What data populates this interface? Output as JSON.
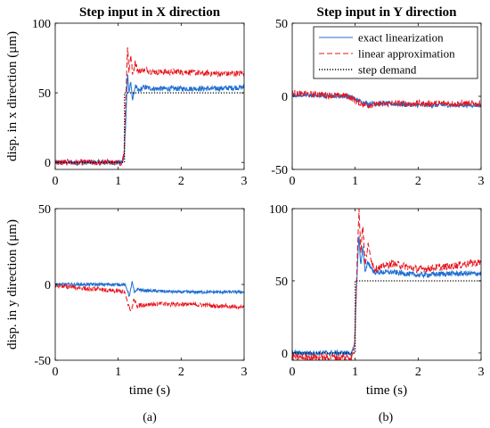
{
  "figure": {
    "captions": [
      "(a)",
      "(b)"
    ]
  },
  "legend": {
    "entries": [
      {
        "label": "exact linearization",
        "color": "#1f6fd1",
        "style": "solid"
      },
      {
        "label": "linear approximation",
        "color": "#e8131b",
        "style": "dashed"
      },
      {
        "label": "step demand",
        "color": "#000000",
        "style": "dotted"
      }
    ],
    "placement": "top-right of top-right panel"
  },
  "chart_data": [
    {
      "type": "line",
      "panel": "top-left",
      "title": "Step input in X direction",
      "xlabel": "",
      "ylabel": "disp. in x direction (μm)",
      "xlim": [
        0,
        3
      ],
      "ylim": [
        -5,
        100
      ],
      "xticks": [
        "0",
        "1",
        "2",
        "3"
      ],
      "yticks": [
        "0",
        "50",
        "100"
      ],
      "series": [
        {
          "name": "exact linearization",
          "color": "#1f6fd1",
          "style": "solid",
          "noise": 1.8,
          "x": [
            0,
            1.05,
            1.09,
            1.12,
            1.15,
            1.17,
            1.2,
            1.23,
            1.27,
            1.32,
            1.4,
            1.55,
            2.0,
            2.5,
            3.0
          ],
          "y": [
            0,
            0,
            2,
            30,
            65,
            50,
            57,
            45,
            55,
            51,
            54,
            53,
            53,
            53,
            54
          ]
        },
        {
          "name": "linear approximation",
          "color": "#e8131b",
          "style": "dashed",
          "noise": 2.2,
          "x": [
            0,
            1.05,
            1.09,
            1.12,
            1.15,
            1.17,
            1.2,
            1.23,
            1.27,
            1.32,
            1.4,
            1.55,
            2.0,
            2.5,
            3.0
          ],
          "y": [
            0,
            0,
            5,
            45,
            85,
            65,
            78,
            62,
            72,
            65,
            67,
            65,
            65,
            64,
            64
          ]
        },
        {
          "name": "step demand",
          "color": "#000000",
          "style": "dotted",
          "noise": 0,
          "x": [
            0,
            1.1,
            1.1,
            3.0
          ],
          "y": [
            0,
            0,
            50,
            50
          ]
        }
      ]
    },
    {
      "type": "line",
      "panel": "top-right",
      "title": "Step input in Y direction",
      "xlabel": "",
      "ylabel": "",
      "xlim": [
        0,
        3
      ],
      "ylim": [
        -50,
        50
      ],
      "xticks": [
        "0",
        "1",
        "2",
        "3"
      ],
      "yticks": [
        "-50",
        "0",
        "50"
      ],
      "series": [
        {
          "name": "exact linearization",
          "color": "#1f6fd1",
          "style": "solid",
          "noise": 1.6,
          "x": [
            0,
            0.9,
            1.0,
            1.1,
            1.2,
            1.5,
            2.0,
            2.5,
            3.0
          ],
          "y": [
            1,
            0,
            -2,
            -4,
            -5,
            -5,
            -6,
            -6,
            -6
          ]
        },
        {
          "name": "linear approximation",
          "color": "#e8131b",
          "style": "dashed",
          "noise": 2.2,
          "x": [
            0,
            0.5,
            0.9,
            1.0,
            1.1,
            1.2,
            1.5,
            2.0,
            2.5,
            3.0
          ],
          "y": [
            2,
            1,
            0,
            -3,
            -5,
            -6,
            -5,
            -5,
            -5,
            -5
          ]
        }
      ]
    },
    {
      "type": "line",
      "panel": "bottom-left",
      "title": "",
      "xlabel": "time (s)",
      "ylabel": "disp. in y direction (μm)",
      "xlim": [
        0,
        3
      ],
      "ylim": [
        -50,
        50
      ],
      "xticks": [
        "0",
        "1",
        "2",
        "3"
      ],
      "yticks": [
        "-50",
        "0",
        "50"
      ],
      "series": [
        {
          "name": "exact linearization",
          "color": "#1f6fd1",
          "style": "solid",
          "noise": 1.0,
          "x": [
            0,
            1.1,
            1.14,
            1.18,
            1.22,
            1.26,
            1.3,
            1.4,
            2.0,
            2.5,
            3.0
          ],
          "y": [
            0,
            0,
            -3,
            -8,
            2,
            -6,
            -3,
            -4,
            -5,
            -5,
            -5
          ]
        },
        {
          "name": "linear approximation",
          "color": "#e8131b",
          "style": "dashed",
          "noise": 1.5,
          "x": [
            0,
            0.6,
            1.1,
            1.15,
            1.2,
            1.25,
            1.3,
            1.5,
            2.0,
            2.5,
            3.0
          ],
          "y": [
            -1,
            -3,
            -5,
            -12,
            -18,
            -10,
            -14,
            -13,
            -13,
            -14,
            -15
          ]
        }
      ]
    },
    {
      "type": "line",
      "panel": "bottom-right",
      "title": "",
      "xlabel": "time (s)",
      "ylabel": "",
      "xlim": [
        0,
        3
      ],
      "ylim": [
        -5,
        100
      ],
      "xticks": [
        "0",
        "1",
        "2",
        "3"
      ],
      "yticks": [
        "0",
        "50",
        "100"
      ],
      "series": [
        {
          "name": "exact linearization",
          "color": "#1f6fd1",
          "style": "solid",
          "noise": 1.8,
          "x": [
            0,
            0.95,
            0.99,
            1.03,
            1.06,
            1.09,
            1.12,
            1.16,
            1.2,
            1.3,
            1.6,
            2.0,
            2.5,
            3.0
          ],
          "y": [
            0,
            0,
            5,
            55,
            82,
            60,
            75,
            55,
            63,
            56,
            56,
            54,
            55,
            55
          ]
        },
        {
          "name": "linear approximation",
          "color": "#e8131b",
          "style": "dashed",
          "noise": 2.5,
          "x": [
            0,
            0.95,
            0.99,
            1.03,
            1.06,
            1.09,
            1.12,
            1.16,
            1.2,
            1.3,
            1.6,
            2.0,
            2.5,
            3.0
          ],
          "y": [
            -3,
            -3,
            5,
            65,
            100,
            70,
            90,
            60,
            75,
            58,
            62,
            58,
            60,
            63
          ]
        },
        {
          "name": "step demand",
          "color": "#000000",
          "style": "dotted",
          "noise": 0,
          "x": [
            0,
            1.0,
            1.0,
            3.0
          ],
          "y": [
            0,
            0,
            50,
            50
          ]
        }
      ]
    }
  ]
}
